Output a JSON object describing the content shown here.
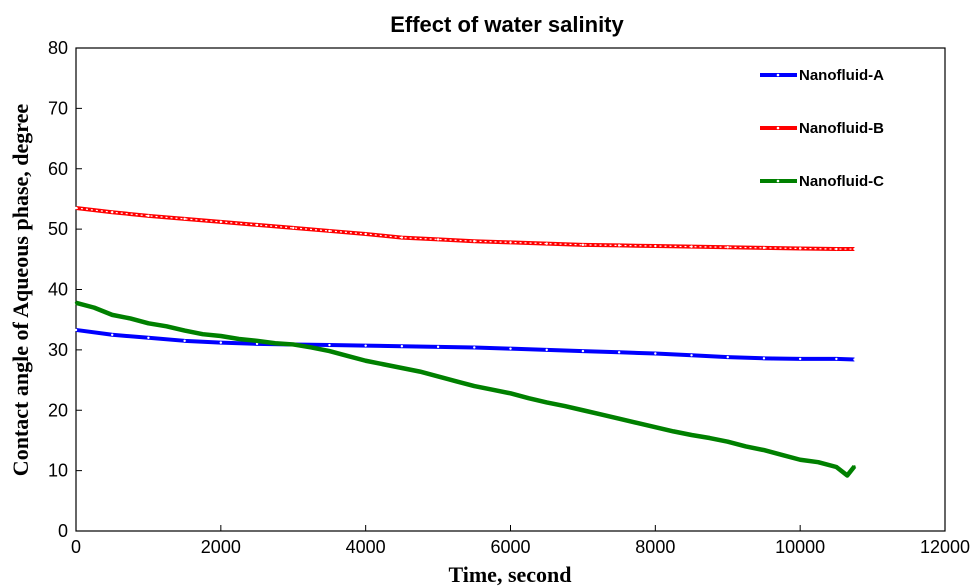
{
  "chart_data": {
    "type": "line",
    "title": "Effect of water salinity",
    "xlabel": "Time, second",
    "ylabel": "Contact angle of Aqueous  phase, degree",
    "xlim": [
      0,
      12000
    ],
    "ylim": [
      0,
      80
    ],
    "x_ticks": [
      "0",
      "2000",
      "4000",
      "6000",
      "8000",
      "10000",
      "12000"
    ],
    "y_ticks": [
      "0",
      "10",
      "20",
      "30",
      "40",
      "50",
      "60",
      "70",
      "80"
    ],
    "grid": false,
    "legend_position": "top-right",
    "series": [
      {
        "name": "Nanofluid-A",
        "color": "#0000ff",
        "style": "solid-line-small-markers",
        "points": [
          [
            0,
            33.3
          ],
          [
            500,
            32.5
          ],
          [
            1000,
            32.0
          ],
          [
            1500,
            31.5
          ],
          [
            2000,
            31.2
          ],
          [
            2500,
            31.0
          ],
          [
            3000,
            30.9
          ],
          [
            3500,
            30.8
          ],
          [
            4000,
            30.7
          ],
          [
            4500,
            30.6
          ],
          [
            5000,
            30.5
          ],
          [
            5500,
            30.4
          ],
          [
            6000,
            30.2
          ],
          [
            6500,
            30.0
          ],
          [
            7000,
            29.8
          ],
          [
            7500,
            29.6
          ],
          [
            8000,
            29.4
          ],
          [
            8500,
            29.1
          ],
          [
            9000,
            28.8
          ],
          [
            9500,
            28.6
          ],
          [
            10000,
            28.5
          ],
          [
            10500,
            28.5
          ],
          [
            10750,
            28.4
          ]
        ]
      },
      {
        "name": "Nanofluid-B",
        "color": "#ff0000",
        "style": "hollow-markers",
        "points": [
          [
            0,
            53.5
          ],
          [
            500,
            52.8
          ],
          [
            1000,
            52.2
          ],
          [
            1500,
            51.7
          ],
          [
            2000,
            51.2
          ],
          [
            2500,
            50.7
          ],
          [
            3000,
            50.2
          ],
          [
            3500,
            49.7
          ],
          [
            4000,
            49.2
          ],
          [
            4500,
            48.6
          ],
          [
            5000,
            48.3
          ],
          [
            5500,
            48.0
          ],
          [
            6000,
            47.8
          ],
          [
            6500,
            47.6
          ],
          [
            7000,
            47.4
          ],
          [
            7500,
            47.3
          ],
          [
            8000,
            47.2
          ],
          [
            8500,
            47.1
          ],
          [
            9000,
            47.0
          ],
          [
            9500,
            46.9
          ],
          [
            10000,
            46.8
          ],
          [
            10500,
            46.7
          ],
          [
            10750,
            46.7
          ]
        ]
      },
      {
        "name": "Nanofluid-C",
        "color": "#008000",
        "style": "thick-noisy-line",
        "points": [
          [
            0,
            37.8
          ],
          [
            250,
            37.0
          ],
          [
            500,
            35.8
          ],
          [
            750,
            35.2
          ],
          [
            1000,
            34.4
          ],
          [
            1250,
            33.9
          ],
          [
            1500,
            33.2
          ],
          [
            1750,
            32.6
          ],
          [
            2000,
            32.3
          ],
          [
            2250,
            31.8
          ],
          [
            2500,
            31.5
          ],
          [
            2750,
            31.1
          ],
          [
            3000,
            30.9
          ],
          [
            3250,
            30.4
          ],
          [
            3500,
            29.8
          ],
          [
            3750,
            29.0
          ],
          [
            4000,
            28.2
          ],
          [
            4250,
            27.6
          ],
          [
            4500,
            27.0
          ],
          [
            4750,
            26.4
          ],
          [
            5000,
            25.6
          ],
          [
            5250,
            24.8
          ],
          [
            5500,
            24.0
          ],
          [
            5750,
            23.4
          ],
          [
            6000,
            22.8
          ],
          [
            6250,
            22.0
          ],
          [
            6500,
            21.3
          ],
          [
            6750,
            20.7
          ],
          [
            7000,
            20.0
          ],
          [
            7250,
            19.3
          ],
          [
            7500,
            18.6
          ],
          [
            7750,
            17.9
          ],
          [
            8000,
            17.2
          ],
          [
            8250,
            16.5
          ],
          [
            8500,
            15.9
          ],
          [
            8750,
            15.4
          ],
          [
            9000,
            14.8
          ],
          [
            9250,
            14.0
          ],
          [
            9500,
            13.4
          ],
          [
            9750,
            12.6
          ],
          [
            10000,
            11.8
          ],
          [
            10250,
            11.4
          ],
          [
            10500,
            10.6
          ],
          [
            10650,
            9.2
          ],
          [
            10750,
            10.7
          ]
        ]
      }
    ]
  }
}
